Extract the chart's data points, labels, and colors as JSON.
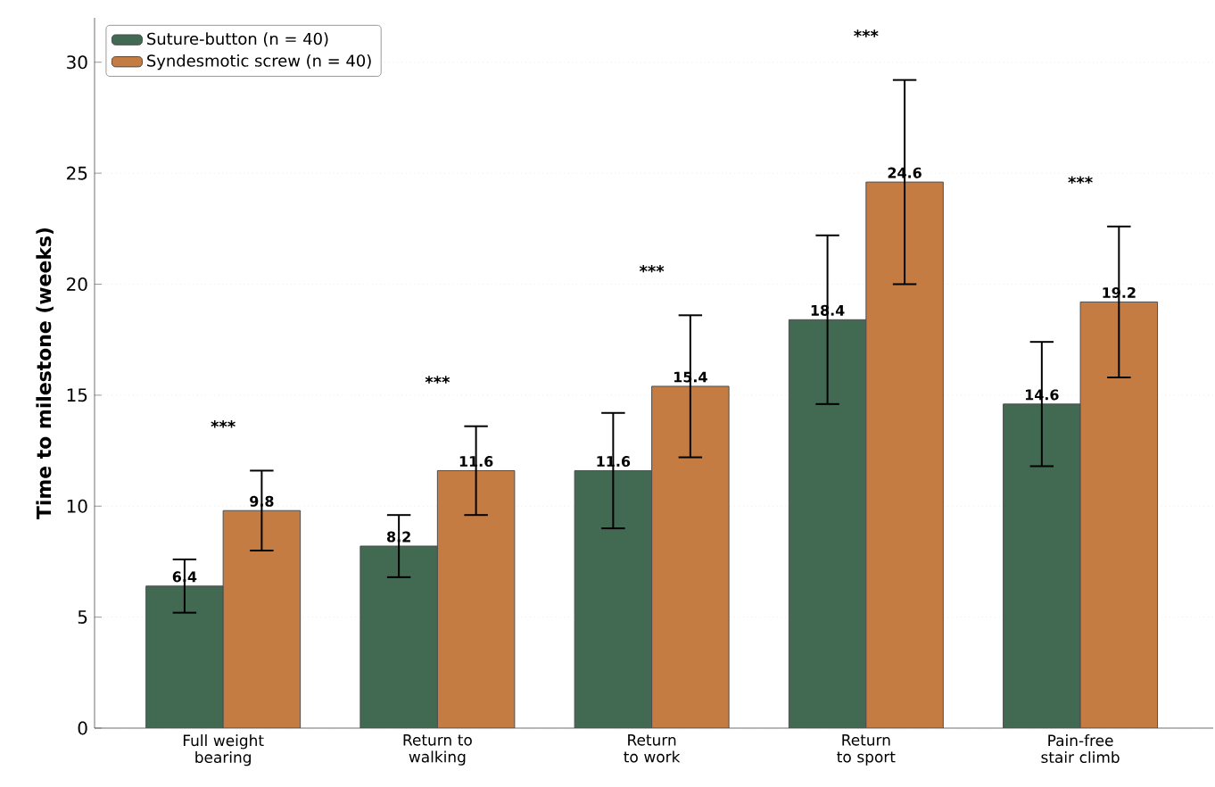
{
  "chart_data": {
    "type": "bar",
    "ylabel": "Time to milestone (weeks)",
    "categories": [
      "Full weight bearing",
      "Return to walking",
      "Return to work",
      "Return to sport",
      "Pain-free stair climb"
    ],
    "series": [
      {
        "name": "Suture-button (n = 40)",
        "color": "#426a52",
        "values": [
          6.4,
          8.2,
          11.6,
          18.4,
          14.6
        ],
        "errors": [
          1.2,
          1.4,
          2.6,
          3.8,
          2.8
        ]
      },
      {
        "name": "Syndesmotic screw (n = 40)",
        "color": "#c47c42",
        "values": [
          9.8,
          11.6,
          15.4,
          24.6,
          19.2
        ],
        "errors": [
          1.8,
          2.0,
          3.2,
          4.6,
          3.4
        ]
      }
    ],
    "ylim": [
      0,
      32
    ],
    "yticks": [
      0,
      5,
      10,
      15,
      20,
      25,
      30
    ],
    "grid": "y",
    "legend": "top left",
    "data_labels": true,
    "annotations": [
      "***",
      "***",
      "***",
      "***",
      "***"
    ]
  }
}
